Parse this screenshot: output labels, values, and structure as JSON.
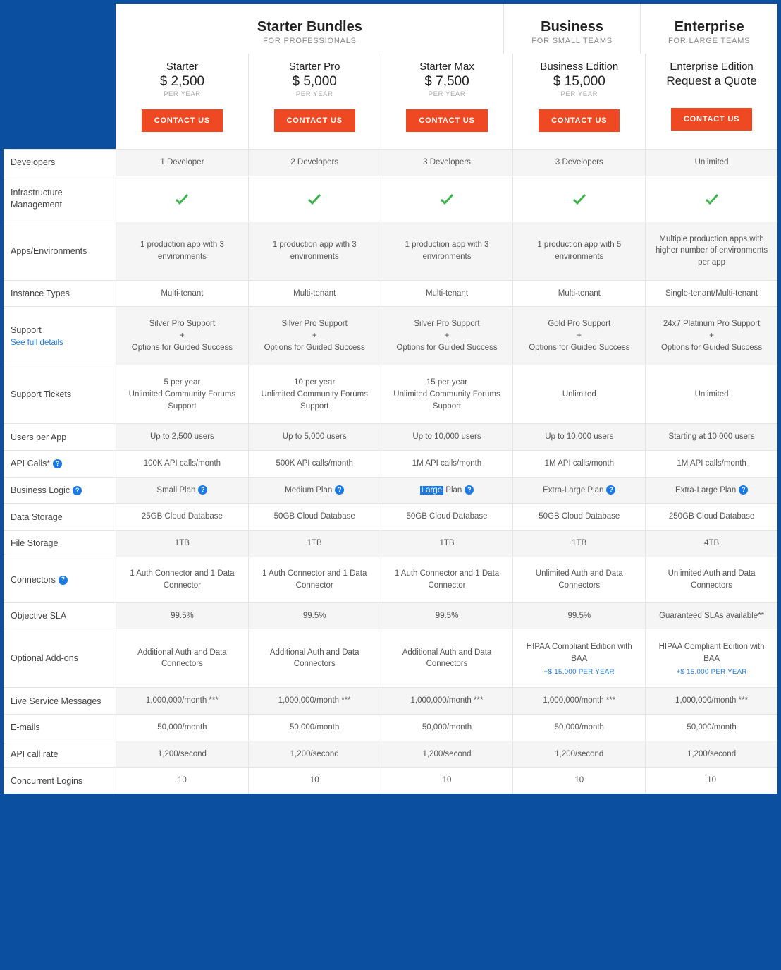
{
  "colors": {
    "page_bg": "#0a4fa0",
    "panel_bg": "#ffffff",
    "row_alt_bg": "#f5f5f5",
    "border": "#e5e5e5",
    "btn_bg": "#ee4923",
    "btn_text": "#ffffff",
    "link": "#1a7ae5",
    "checkmark": "#3bb54a",
    "text_primary": "#222222",
    "text_secondary": "#555555",
    "text_muted": "#888888"
  },
  "group_headers": [
    {
      "title": "Starter Bundles",
      "subtitle": "FOR PROFESSIONALS",
      "span": 3
    },
    {
      "title": "Business",
      "subtitle": "FOR SMALL TEAMS",
      "span": 1
    },
    {
      "title": "Enterprise",
      "subtitle": "FOR LARGE TEAMS",
      "span": 1
    }
  ],
  "plans": [
    {
      "name": "Starter",
      "price": "$ 2,500",
      "period": "PER YEAR",
      "cta": "CONTACT US"
    },
    {
      "name": "Starter Pro",
      "price": "$ 5,000",
      "period": "PER YEAR",
      "cta": "CONTACT US"
    },
    {
      "name": "Starter Max",
      "price": "$ 7,500",
      "period": "PER YEAR",
      "cta": "CONTACT US"
    },
    {
      "name": "Business Edition",
      "price": "$ 15,000",
      "period": "PER YEAR",
      "cta": "CONTACT US"
    },
    {
      "name": "Enterprise Edition",
      "price": "Request a Quote",
      "period": "",
      "cta": "CONTACT US",
      "is_quote": true
    }
  ],
  "features": [
    {
      "label": "Developers",
      "alt": true,
      "values": [
        "1 Developer",
        "2 Developers",
        "3 Developers",
        "3 Developers",
        "Unlimited"
      ]
    },
    {
      "label": "Infrastructure Management",
      "height": "tall",
      "values": [
        "check",
        "check",
        "check",
        "check",
        "check"
      ]
    },
    {
      "label": "Apps/Environments",
      "alt": true,
      "height": "xtall",
      "values": [
        "1 production app with 3 environments",
        "1 production app with 3 environments",
        "1 production app with 3 environments",
        "1 production app with 5 environments",
        "Multiple production apps with higher number of environments per app"
      ]
    },
    {
      "label": "Instance Types",
      "values": [
        "Multi-tenant",
        "Multi-tenant",
        "Multi-tenant",
        "Multi-tenant",
        "Single-tenant/Multi-tenant"
      ]
    },
    {
      "label": "Support",
      "label_link": "See full details",
      "alt": true,
      "height": "xtall",
      "values": [
        "Silver Pro Support\n+\nOptions for Guided Success",
        "Silver Pro Support\n+\nOptions for Guided Success",
        "Silver Pro Support\n+\nOptions for Guided Success",
        "Gold Pro Support\n+\nOptions for Guided Success",
        "24x7 Platinum Pro Support\n+\nOptions for Guided Success"
      ]
    },
    {
      "label": "Support Tickets",
      "height": "xtall",
      "values": [
        "5 per year\nUnlimited Community Forums Support",
        "10 per year\nUnlimited Community Forums Support",
        "15 per year\nUnlimited Community Forums Support",
        "Unlimited",
        "Unlimited"
      ]
    },
    {
      "label": "Users per App",
      "alt": true,
      "values": [
        "Up to 2,500 users",
        "Up to 5,000 users",
        "Up to 10,000 users",
        "Up to 10,000 users",
        "Starting at 10,000 users"
      ]
    },
    {
      "label": "API Calls*",
      "label_info": true,
      "values": [
        "100K API calls/month",
        "500K API calls/month",
        "1M API calls/month",
        "1M API calls/month",
        "1M API calls/month"
      ]
    },
    {
      "label": "Business Logic",
      "label_info": true,
      "alt": true,
      "values_info": true,
      "values": [
        "Small Plan",
        "Medium Plan",
        "Large Plan",
        "Extra-Large Plan",
        "Extra-Large Plan"
      ],
      "highlight_index": 2,
      "highlight_word": "Large"
    },
    {
      "label": "Data Storage",
      "values": [
        "25GB Cloud Database",
        "50GB Cloud Database",
        "50GB Cloud Database",
        "50GB Cloud Database",
        "250GB Cloud Database"
      ]
    },
    {
      "label": "File Storage",
      "alt": true,
      "values": [
        "1TB",
        "1TB",
        "1TB",
        "1TB",
        "4TB"
      ]
    },
    {
      "label": "Connectors",
      "label_info": true,
      "height": "tall",
      "values": [
        "1 Auth Connector and 1 Data Connector",
        "1 Auth Connector and 1 Data Connector",
        "1 Auth Connector and 1 Data Connector",
        "Unlimited Auth and Data Connectors",
        "Unlimited Auth and Data Connectors"
      ]
    },
    {
      "label": "Objective SLA",
      "alt": true,
      "values": [
        "99.5%",
        "99.5%",
        "99.5%",
        "99.5%",
        "Guaranteed SLAs available**"
      ]
    },
    {
      "label": "Optional Add-ons",
      "height": "xtall",
      "values": [
        "Additional Auth and Data Connectors",
        "Additional Auth and Data Connectors",
        "Additional Auth and Data Connectors",
        "HIPAA Compliant Edition with BAA",
        "HIPAA Compliant Edition with BAA"
      ],
      "addon_price_indices": [
        3,
        4
      ],
      "addon_price": "+$ 15,000 PER YEAR"
    },
    {
      "label": "Live Service Messages",
      "alt": true,
      "values": [
        "1,000,000/month ***",
        "1,000,000/month ***",
        "1,000,000/month ***",
        "1,000,000/month ***",
        "1,000,000/month ***"
      ]
    },
    {
      "label": "E-mails",
      "values": [
        "50,000/month",
        "50,000/month",
        "50,000/month",
        "50,000/month",
        "50,000/month"
      ]
    },
    {
      "label": "API call rate",
      "alt": true,
      "values": [
        "1,200/second",
        "1,200/second",
        "1,200/second",
        "1,200/second",
        "1,200/second"
      ]
    },
    {
      "label": "Concurrent Logins",
      "values": [
        "10",
        "10",
        "10",
        "10",
        "10"
      ]
    }
  ]
}
